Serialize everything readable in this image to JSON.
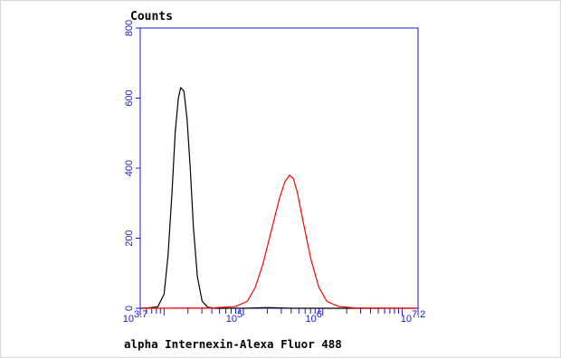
{
  "chart_data": {
    "type": "line",
    "title": "Counts",
    "xlabel": "alpha Internexin-Alexa Fluor 488",
    "ylabel": "",
    "x_scale": "log10",
    "xlim_log10": [
      3.7,
      7.2
    ],
    "ylim": [
      0,
      800
    ],
    "y_ticks": [
      0,
      200,
      400,
      600,
      800
    ],
    "x_tick_labels": [
      {
        "base": "10",
        "exp": "3.7",
        "log10": 3.7
      },
      {
        "base": "10",
        "exp": "5",
        "log10": 5
      },
      {
        "base": "10",
        "exp": "6",
        "log10": 6
      },
      {
        "base": "10",
        "exp": "7.2",
        "log10": 7.2
      }
    ],
    "series": [
      {
        "color": "#000000",
        "points_log10x": [
          [
            3.7,
            0
          ],
          [
            3.8,
            1
          ],
          [
            3.92,
            4
          ],
          [
            4.0,
            40
          ],
          [
            4.05,
            150
          ],
          [
            4.1,
            330
          ],
          [
            4.14,
            500
          ],
          [
            4.18,
            600
          ],
          [
            4.21,
            630
          ],
          [
            4.25,
            620
          ],
          [
            4.29,
            540
          ],
          [
            4.33,
            400
          ],
          [
            4.37,
            230
          ],
          [
            4.42,
            90
          ],
          [
            4.48,
            20
          ],
          [
            4.55,
            3
          ],
          [
            4.65,
            0
          ],
          [
            5.0,
            0
          ],
          [
            5.3,
            2
          ],
          [
            5.6,
            0
          ],
          [
            7.2,
            0
          ]
        ]
      },
      {
        "color": "#ff0000",
        "points_log10x": [
          [
            3.7,
            0
          ],
          [
            4.6,
            1
          ],
          [
            4.9,
            5
          ],
          [
            5.05,
            20
          ],
          [
            5.15,
            60
          ],
          [
            5.25,
            130
          ],
          [
            5.35,
            220
          ],
          [
            5.45,
            310
          ],
          [
            5.52,
            360
          ],
          [
            5.58,
            380
          ],
          [
            5.63,
            370
          ],
          [
            5.68,
            330
          ],
          [
            5.75,
            250
          ],
          [
            5.85,
            140
          ],
          [
            5.95,
            60
          ],
          [
            6.05,
            20
          ],
          [
            6.2,
            5
          ],
          [
            6.4,
            1
          ],
          [
            7.2,
            0
          ]
        ]
      }
    ]
  }
}
